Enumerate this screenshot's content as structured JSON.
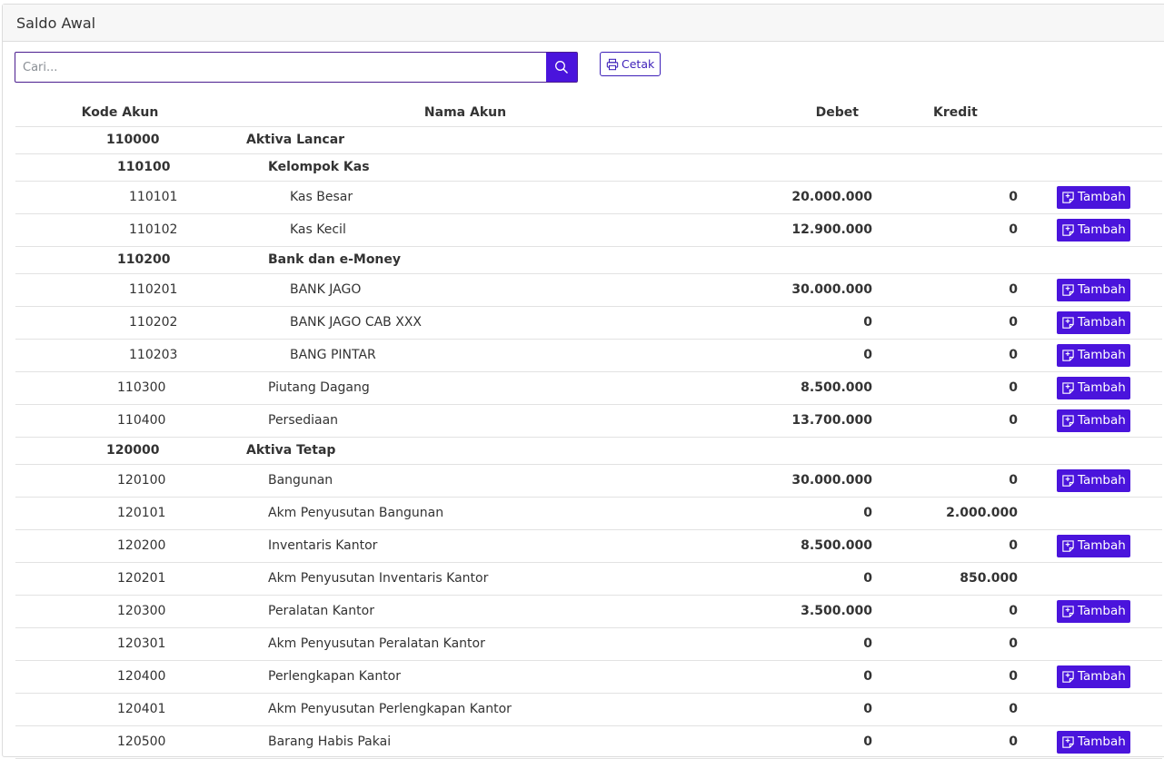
{
  "header": {
    "title": "Saldo Awal"
  },
  "search": {
    "placeholder": "Cari..."
  },
  "toolbar": {
    "print_label": "Cetak"
  },
  "table": {
    "columns": [
      "Kode Akun",
      "Nama Akun",
      "Debet",
      "Kredit"
    ],
    "action_label": "Tambah",
    "rows": [
      {
        "kode": "110000",
        "nama": "Aktiva Lancar",
        "debet": "",
        "kredit": "",
        "level": 0,
        "group": true,
        "action": false
      },
      {
        "kode": "110100",
        "nama": "Kelompok Kas",
        "debet": "",
        "kredit": "",
        "level": 1,
        "group": true,
        "action": false
      },
      {
        "kode": "110101",
        "nama": "Kas Besar",
        "debet": "20.000.000",
        "kredit": "0",
        "level": 2,
        "group": false,
        "action": true
      },
      {
        "kode": "110102",
        "nama": "Kas Kecil",
        "debet": "12.900.000",
        "kredit": "0",
        "level": 2,
        "group": false,
        "action": true
      },
      {
        "kode": "110200",
        "nama": "Bank dan e-Money",
        "debet": "",
        "kredit": "",
        "level": 1,
        "group": true,
        "action": false
      },
      {
        "kode": "110201",
        "nama": "BANK JAGO",
        "debet": "30.000.000",
        "kredit": "0",
        "level": 2,
        "group": false,
        "action": true
      },
      {
        "kode": "110202",
        "nama": "BANK JAGO CAB XXX",
        "debet": "0",
        "kredit": "0",
        "level": 2,
        "group": false,
        "action": true
      },
      {
        "kode": "110203",
        "nama": "BANG PINTAR",
        "debet": "0",
        "kredit": "0",
        "level": 2,
        "group": false,
        "action": true
      },
      {
        "kode": "110300",
        "nama": "Piutang Dagang",
        "debet": "8.500.000",
        "kredit": "0",
        "level": 1,
        "group": false,
        "action": true
      },
      {
        "kode": "110400",
        "nama": "Persediaan",
        "debet": "13.700.000",
        "kredit": "0",
        "level": 1,
        "group": false,
        "action": true
      },
      {
        "kode": "120000",
        "nama": "Aktiva Tetap",
        "debet": "",
        "kredit": "",
        "level": 0,
        "group": true,
        "action": false
      },
      {
        "kode": "120100",
        "nama": "Bangunan",
        "debet": "30.000.000",
        "kredit": "0",
        "level": 1,
        "group": false,
        "action": true
      },
      {
        "kode": "120101",
        "nama": "Akm Penyusutan Bangunan",
        "debet": "0",
        "kredit": "2.000.000",
        "level": 1,
        "group": false,
        "action": false
      },
      {
        "kode": "120200",
        "nama": "Inventaris Kantor",
        "debet": "8.500.000",
        "kredit": "0",
        "level": 1,
        "group": false,
        "action": true
      },
      {
        "kode": "120201",
        "nama": "Akm Penyusutan Inventaris Kantor",
        "debet": "0",
        "kredit": "850.000",
        "level": 1,
        "group": false,
        "action": false
      },
      {
        "kode": "120300",
        "nama": "Peralatan Kantor",
        "debet": "3.500.000",
        "kredit": "0",
        "level": 1,
        "group": false,
        "action": true
      },
      {
        "kode": "120301",
        "nama": "Akm Penyusutan Peralatan Kantor",
        "debet": "0",
        "kredit": "0",
        "level": 1,
        "group": false,
        "action": false
      },
      {
        "kode": "120400",
        "nama": "Perlengkapan Kantor",
        "debet": "0",
        "kredit": "0",
        "level": 1,
        "group": false,
        "action": true
      },
      {
        "kode": "120401",
        "nama": "Akm Penyusutan Perlengkapan Kantor",
        "debet": "0",
        "kredit": "0",
        "level": 1,
        "group": false,
        "action": false
      },
      {
        "kode": "120500",
        "nama": "Barang Habis Pakai",
        "debet": "0",
        "kredit": "0",
        "level": 1,
        "group": false,
        "action": true
      }
    ]
  },
  "colors": {
    "primary": "#4a14dc",
    "border": "#e2e2e2",
    "header_bg": "#f7f7f7"
  }
}
